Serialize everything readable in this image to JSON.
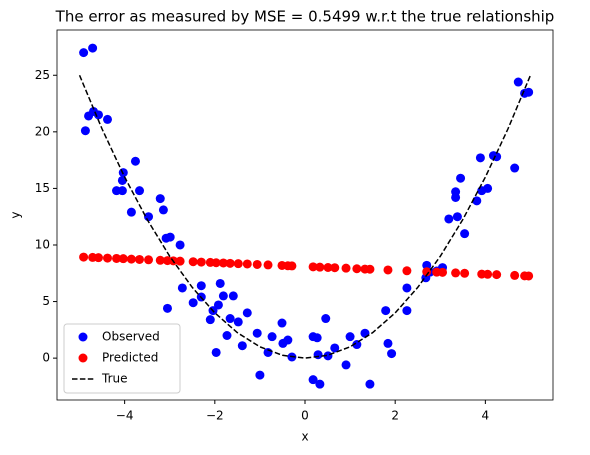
{
  "chart_data": {
    "type": "scatter",
    "title": "The error as measured by MSE = 0.5499 w.r.t the true relationship",
    "xlabel": "x",
    "ylabel": "y",
    "xlim": [
      -5.5,
      5.5
    ],
    "ylim": [
      -3.7,
      29.0
    ],
    "xticks": [
      {
        "value": -4,
        "label": "−4"
      },
      {
        "value": -2,
        "label": "−2"
      },
      0,
      2,
      4
    ],
    "yticks": [
      0,
      5,
      10,
      15,
      20,
      25
    ],
    "legend": "lower left",
    "series": [
      {
        "name": "Observed",
        "color": "#0000ff",
        "type": "scatter",
        "x": [
          -4.91,
          -4.71,
          -4.87,
          -4.8,
          -4.69,
          -4.58,
          -4.38,
          -4.03,
          -4.05,
          -4.18,
          -4.05,
          -3.76,
          -3.67,
          -3.85,
          -3.47,
          -3.21,
          -3.14,
          -3.08,
          -2.99,
          -2.77,
          -3.05,
          -2.72,
          -2.48,
          -2.3,
          -2.3,
          -2.04,
          -2.1,
          -1.92,
          -1.88,
          -1.81,
          -1.97,
          -1.73,
          -1.66,
          -1.59,
          -1.48,
          -1.39,
          -1.28,
          -1.06,
          -1.0,
          -0.82,
          -0.73,
          -0.49,
          -0.51,
          -0.38,
          -0.29,
          0.18,
          0.27,
          0.29,
          0.18,
          0.33,
          0.46,
          0.51,
          0.66,
          0.91,
          1.0,
          1.15,
          1.33,
          1.44,
          1.79,
          1.84,
          1.92,
          2.26,
          2.26,
          2.7,
          2.68,
          2.77,
          2.92,
          3.05,
          3.19,
          3.34,
          3.34,
          3.38,
          3.45,
          3.54,
          3.81,
          3.89,
          3.92,
          4.05,
          4.18,
          4.25,
          4.65,
          4.73,
          4.87,
          4.96
        ],
        "values": [
          27.0,
          27.4,
          20.1,
          21.4,
          21.8,
          21.5,
          21.1,
          16.4,
          15.7,
          14.8,
          14.8,
          17.4,
          14.8,
          12.9,
          12.5,
          14.1,
          13.1,
          10.6,
          10.7,
          10.0,
          4.4,
          6.2,
          4.9,
          6.4,
          5.4,
          4.2,
          3.4,
          4.7,
          6.6,
          5.5,
          0.5,
          2.0,
          3.5,
          5.5,
          3.2,
          1.1,
          4.0,
          2.2,
          -1.5,
          0.5,
          1.9,
          1.3,
          3.1,
          1.6,
          0.1,
          1.9,
          1.8,
          0.3,
          -1.9,
          -2.3,
          3.5,
          0.2,
          0.9,
          -0.6,
          1.9,
          1.2,
          2.2,
          -2.3,
          4.2,
          1.3,
          0.4,
          6.2,
          4.2,
          8.2,
          7.1,
          7.6,
          7.7,
          8.0,
          12.3,
          14.2,
          14.7,
          12.5,
          15.9,
          11.0,
          13.9,
          17.7,
          14.8,
          15.0,
          17.9,
          17.8,
          16.8,
          24.4,
          23.4,
          23.5
        ]
      },
      {
        "name": "Predicted",
        "color": "#ff0000",
        "type": "scatter",
        "x": [
          -4.91,
          -4.71,
          -4.58,
          -4.38,
          -4.18,
          -4.03,
          -3.85,
          -3.67,
          -3.47,
          -3.21,
          -3.05,
          -2.92,
          -2.77,
          -2.48,
          -2.3,
          -2.1,
          -1.97,
          -1.81,
          -1.66,
          -1.48,
          -1.28,
          -1.06,
          -0.82,
          -0.51,
          -0.38,
          -0.29,
          0.18,
          0.33,
          0.51,
          0.66,
          0.91,
          1.15,
          1.33,
          1.44,
          1.84,
          2.26,
          2.7,
          2.92,
          3.05,
          3.34,
          3.54,
          3.92,
          4.05,
          4.25,
          4.65,
          4.87,
          4.96
        ],
        "values": [
          8.93,
          8.9,
          8.88,
          8.84,
          8.81,
          8.79,
          8.75,
          8.72,
          8.69,
          8.65,
          8.62,
          8.6,
          8.57,
          8.52,
          8.49,
          8.46,
          8.43,
          8.41,
          8.38,
          8.35,
          8.32,
          8.28,
          8.24,
          8.19,
          8.16,
          8.15,
          8.07,
          8.04,
          8.01,
          7.99,
          7.95,
          7.9,
          7.87,
          7.86,
          7.79,
          7.72,
          7.64,
          7.6,
          7.58,
          7.53,
          7.5,
          7.43,
          7.41,
          7.38,
          7.31,
          7.27,
          7.26
        ]
      },
      {
        "name": "True",
        "color": "#000000",
        "type": "line",
        "dash": "dashed",
        "x": [
          -5,
          -4.5,
          -4,
          -3.5,
          -3,
          -2.5,
          -2,
          -1.5,
          -1,
          -0.5,
          0,
          0.5,
          1,
          1.5,
          2,
          2.5,
          3,
          3.5,
          4,
          4.5,
          5
        ],
        "values": [
          25,
          20.25,
          16,
          12.25,
          9,
          6.25,
          4,
          2.25,
          1,
          0.25,
          0,
          0.25,
          1,
          2.25,
          4,
          6.25,
          9,
          12.25,
          16,
          20.25,
          25
        ]
      }
    ]
  }
}
